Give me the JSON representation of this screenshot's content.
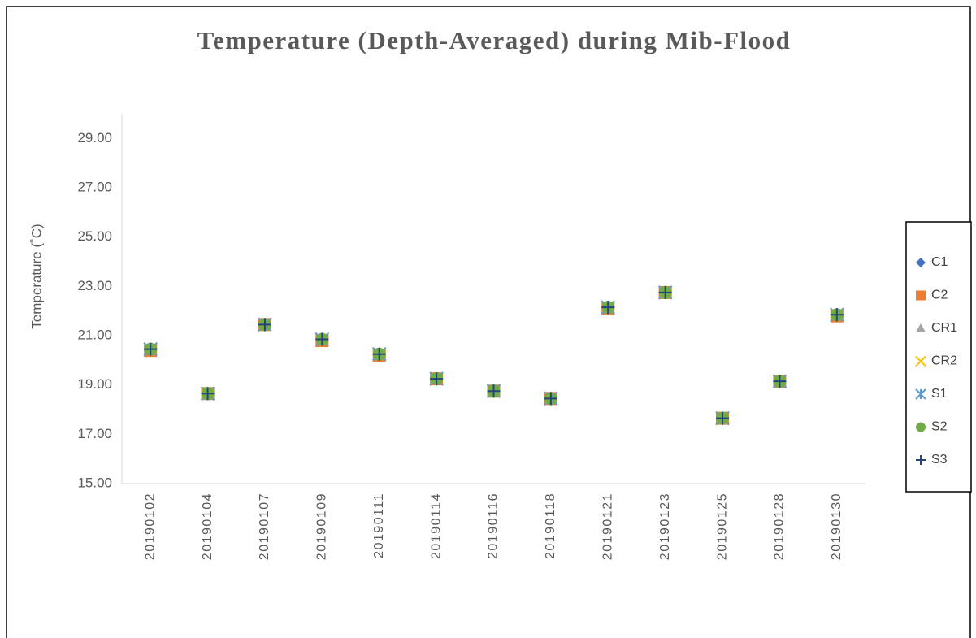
{
  "chart_data": {
    "type": "scatter",
    "title": "Temperature (Depth-Averaged) during Mib-Flood",
    "y_label": "Temperature (˚C)",
    "categories": [
      "20190102",
      "20190104",
      "20190107",
      "20190109",
      "20190111",
      "20190114",
      "20190116",
      "20190118",
      "20190121",
      "20190123",
      "20190125",
      "20190128",
      "20190130"
    ],
    "series": [
      {
        "name": "C1",
        "color": "#4472c4",
        "marker": "diamond",
        "values": [
          20.45,
          18.65,
          21.45,
          20.85,
          20.25,
          19.25,
          18.75,
          18.45,
          22.15,
          22.75,
          17.65,
          19.15,
          21.85
        ]
      },
      {
        "name": "C2",
        "color": "#ed7d31",
        "marker": "square",
        "values": [
          20.4,
          18.65,
          21.45,
          20.8,
          20.2,
          19.25,
          18.75,
          18.45,
          22.1,
          22.75,
          17.65,
          19.15,
          21.8
        ]
      },
      {
        "name": "CR1",
        "color": "#a5a5a5",
        "marker": "triangle",
        "values": [
          20.45,
          18.65,
          21.45,
          20.85,
          20.25,
          19.25,
          18.75,
          18.45,
          22.15,
          22.75,
          17.65,
          19.15,
          21.85
        ]
      },
      {
        "name": "CR2",
        "color": "#ffc000",
        "marker": "x",
        "values": [
          20.45,
          18.65,
          21.45,
          20.85,
          20.25,
          19.25,
          18.75,
          18.45,
          22.15,
          22.75,
          17.65,
          19.15,
          21.85
        ]
      },
      {
        "name": "S1",
        "color": "#5b9bd5",
        "marker": "asterisk",
        "values": [
          20.45,
          18.65,
          21.45,
          20.85,
          20.25,
          19.25,
          18.75,
          18.45,
          22.15,
          22.75,
          17.65,
          19.15,
          21.85
        ]
      },
      {
        "name": "S2",
        "color": "#70ad47",
        "marker": "circle",
        "values": [
          20.45,
          18.65,
          21.45,
          20.85,
          20.25,
          19.25,
          18.75,
          18.45,
          22.15,
          22.75,
          17.65,
          19.15,
          21.85
        ]
      },
      {
        "name": "S3",
        "color": "#264478",
        "marker": "plus",
        "values": [
          20.45,
          18.65,
          21.45,
          20.85,
          20.25,
          19.25,
          18.75,
          18.45,
          22.15,
          22.75,
          17.65,
          19.15,
          21.85
        ]
      }
    ],
    "ylim": [
      15,
      30
    ],
    "yticks": [
      {
        "value": 15,
        "label": "15.00"
      },
      {
        "value": 17,
        "label": "17.00"
      },
      {
        "value": 19,
        "label": "19.00"
      },
      {
        "value": 21,
        "label": "21.00"
      },
      {
        "value": 23,
        "label": "23.00"
      },
      {
        "value": 25,
        "label": "25.00"
      },
      {
        "value": 27,
        "label": "27.00"
      },
      {
        "value": 29,
        "label": "29.00"
      }
    ],
    "grid": false,
    "legend": "right"
  }
}
